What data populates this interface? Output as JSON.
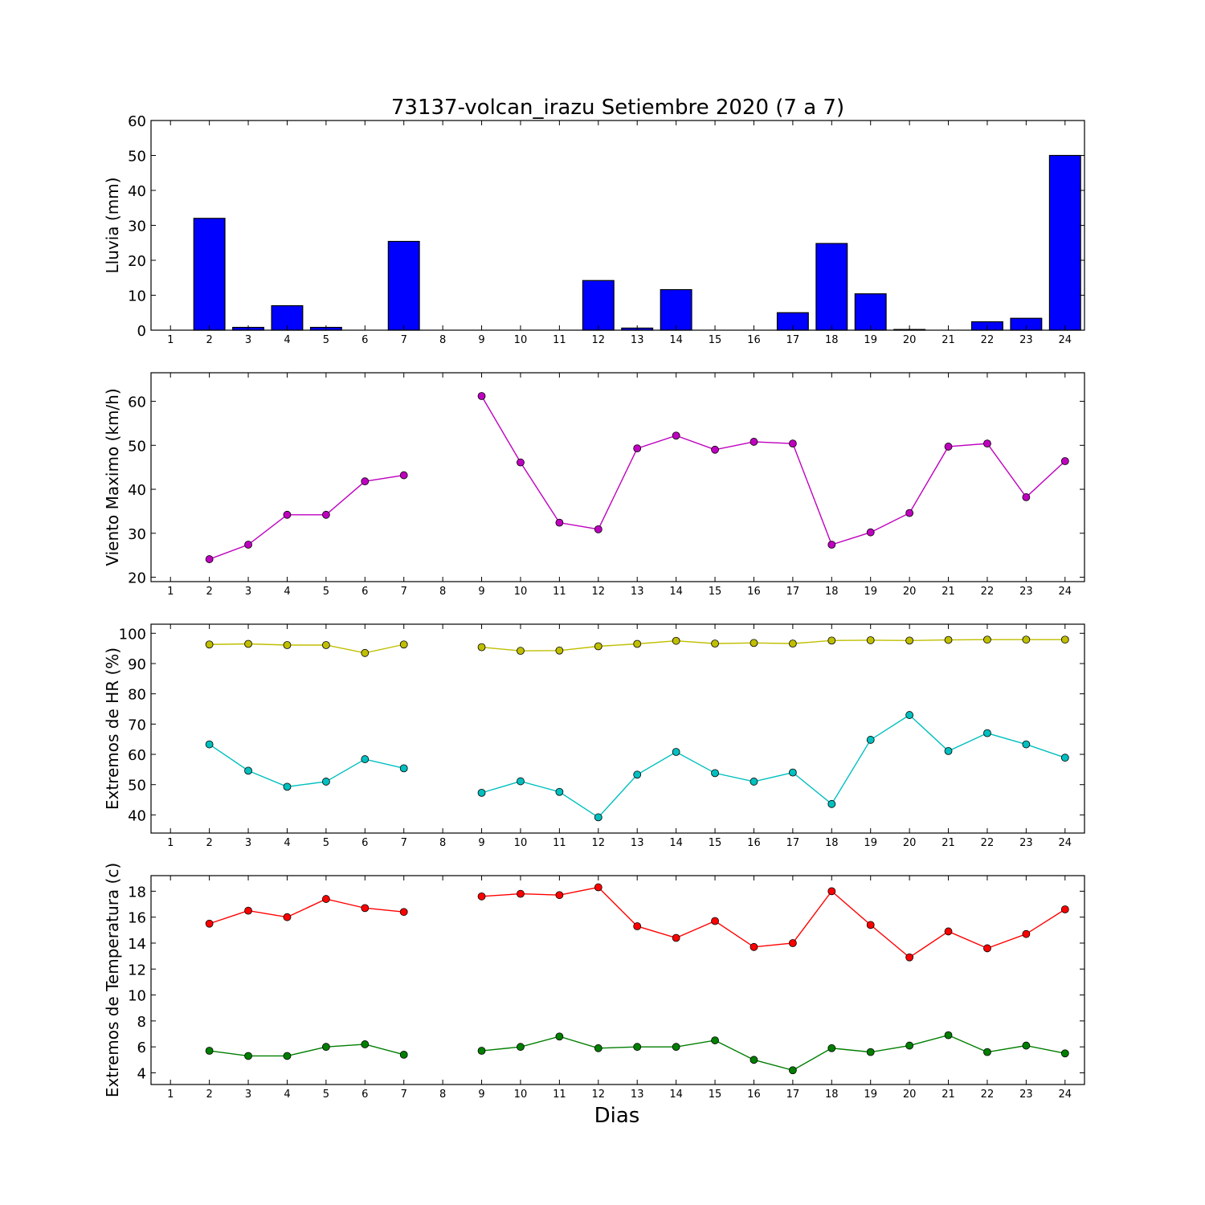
{
  "chart_data": {
    "title": "73137-volcan_irazu Setiembre 2020  (7 a 7)",
    "xlabel": "Dias",
    "days": [
      1,
      2,
      3,
      4,
      5,
      6,
      7,
      8,
      9,
      10,
      11,
      12,
      13,
      14,
      15,
      16,
      17,
      18,
      19,
      20,
      21,
      22,
      23,
      24
    ],
    "x_tick_labels": [
      "1",
      "2",
      "3",
      "4",
      "5",
      "6",
      "7",
      "8",
      "9",
      "10",
      "11",
      "12",
      "13",
      "14",
      "15",
      "16",
      "17",
      "18",
      "19",
      "20",
      "21",
      "22",
      "23",
      "24"
    ],
    "panels": [
      {
        "type": "bar",
        "ylabel": "Lluvia (mm)",
        "ylim": [
          0,
          60
        ],
        "yticks": [
          0,
          10,
          20,
          30,
          40,
          50,
          60
        ],
        "series": [
          {
            "color": "#0000ff",
            "values": [
              0,
              32.0,
              0.8,
              7.0,
              0.8,
              0,
              25.4,
              0,
              0,
              0,
              0,
              14.2,
              0.6,
              11.6,
              0,
              0,
              5.0,
              24.8,
              10.4,
              0.2,
              0,
              2.4,
              3.4,
              50.0
            ]
          }
        ]
      },
      {
        "type": "line",
        "ylabel": "Viento Maximo (km/h)",
        "ylim": [
          19,
          66.5
        ],
        "yticks": [
          20,
          30,
          40,
          50,
          60
        ],
        "series": [
          {
            "color": "#bf00bf",
            "values": [
              null,
              24.1,
              27.4,
              34.2,
              34.2,
              41.8,
              43.2,
              null,
              61.2,
              46.1,
              32.4,
              30.9,
              49.3,
              52.2,
              49.0,
              50.8,
              50.4,
              27.4,
              30.2,
              34.6,
              49.7,
              50.4,
              38.2,
              46.4
            ]
          }
        ]
      },
      {
        "type": "line",
        "ylabel": "Extremos de HR (%)",
        "ylim": [
          34,
          103
        ],
        "yticks": [
          40,
          50,
          60,
          70,
          80,
          90,
          100
        ],
        "series": [
          {
            "color": "#bfbf00",
            "values": [
              null,
              96.3,
              96.5,
              96.1,
              96.1,
              93.5,
              96.3,
              null,
              95.4,
              94.2,
              94.3,
              95.7,
              96.5,
              97.5,
              96.6,
              96.8,
              96.6,
              97.6,
              97.7,
              97.6,
              97.8,
              97.9,
              97.9,
              97.9
            ]
          },
          {
            "color": "#00bfbf",
            "values": [
              null,
              63.3,
              54.6,
              49.3,
              51.0,
              58.4,
              55.4,
              null,
              47.3,
              51.1,
              47.6,
              39.2,
              53.3,
              60.8,
              53.8,
              51.0,
              54.0,
              43.6,
              64.8,
              73.0,
              61.1,
              67.0,
              63.3,
              58.9
            ]
          }
        ]
      },
      {
        "type": "line",
        "ylabel": "Extremos de Temperatura (c)",
        "ylim": [
          3.1,
          19.2
        ],
        "yticks": [
          4,
          6,
          8,
          10,
          12,
          14,
          16,
          18
        ],
        "series": [
          {
            "color": "#ff0000",
            "values": [
              null,
              15.5,
              16.5,
              16.0,
              17.4,
              16.7,
              16.4,
              null,
              17.6,
              17.8,
              17.7,
              18.3,
              15.3,
              14.4,
              15.7,
              13.7,
              14.0,
              18.0,
              15.4,
              12.9,
              14.9,
              13.6,
              14.7,
              16.6
            ]
          },
          {
            "color": "#007f00",
            "values": [
              null,
              5.7,
              5.3,
              5.3,
              6.0,
              6.2,
              5.4,
              null,
              5.7,
              6.0,
              6.8,
              5.9,
              6.0,
              6.0,
              6.5,
              5.0,
              4.2,
              5.9,
              5.6,
              6.1,
              6.9,
              5.6,
              6.1,
              5.5
            ]
          }
        ]
      }
    ]
  }
}
